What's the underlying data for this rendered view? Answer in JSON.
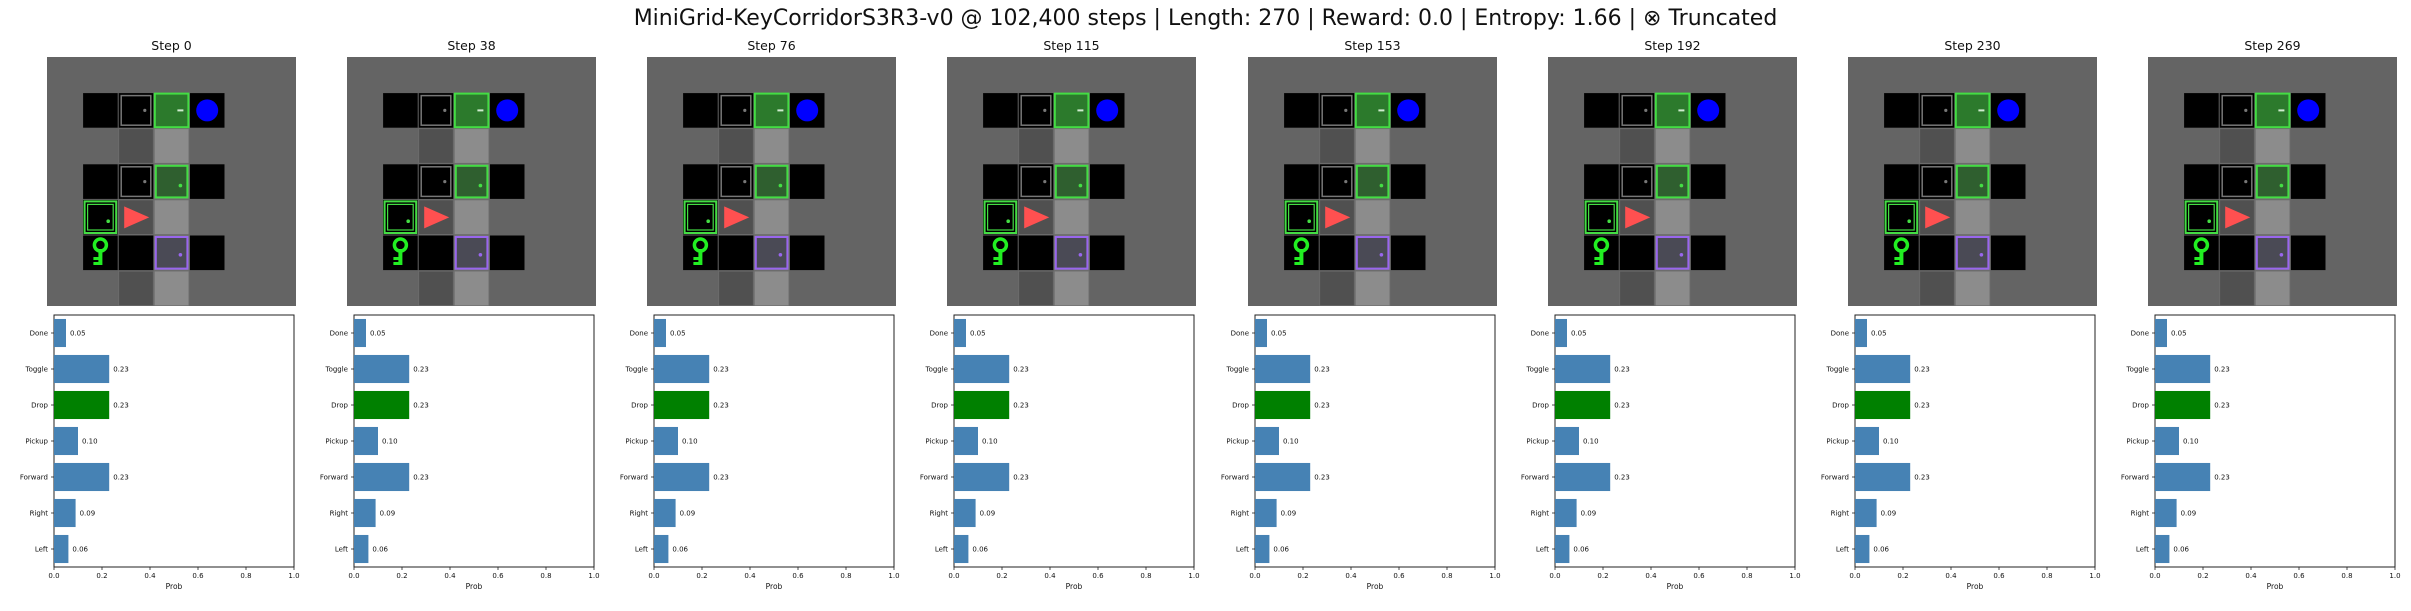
{
  "title": "MiniGrid-KeyCorridorS3R3-v0 @ 102,400 steps | Length: 270 | Reward: 0.0 | Entropy: 1.66 | ⊗ Truncated",
  "colors": {
    "bar": "#4682b4",
    "selected_bar": "#008000",
    "wall": "#646464",
    "floor": "#000000",
    "corridor_floor": "#8c8c8c",
    "agent": "#ff5050",
    "key": "#22ee22",
    "door_green": "#44dd44",
    "door_purple": "#9966ee",
    "ball": "#0000ff"
  },
  "grid_icons": [
    "agent-triangle-icon",
    "key-icon",
    "ball-icon",
    "door-icon",
    "locked-door-icon"
  ],
  "chart_data": {
    "type": "bar",
    "orientation": "horizontal",
    "categories": [
      "Left",
      "Right",
      "Forward",
      "Pickup",
      "Drop",
      "Toggle",
      "Done"
    ],
    "values": [
      0.06,
      0.09,
      0.23,
      0.1,
      0.23,
      0.23,
      0.05
    ],
    "value_labels": [
      "0.06",
      "0.09",
      "0.23",
      "0.10",
      "0.23",
      "0.23",
      "0.05"
    ],
    "selected": "Drop",
    "xlabel": "Prob",
    "xlim": [
      0,
      1
    ],
    "xticks": [
      "0.0",
      "0.2",
      "0.4",
      "0.6",
      "0.8",
      "1.0"
    ]
  },
  "panels": [
    {
      "label": "Step 0"
    },
    {
      "label": "Step 38"
    },
    {
      "label": "Step 76"
    },
    {
      "label": "Step 115"
    },
    {
      "label": "Step 153"
    },
    {
      "label": "Step 192"
    },
    {
      "label": "Step 230"
    },
    {
      "label": "Step 269"
    }
  ]
}
